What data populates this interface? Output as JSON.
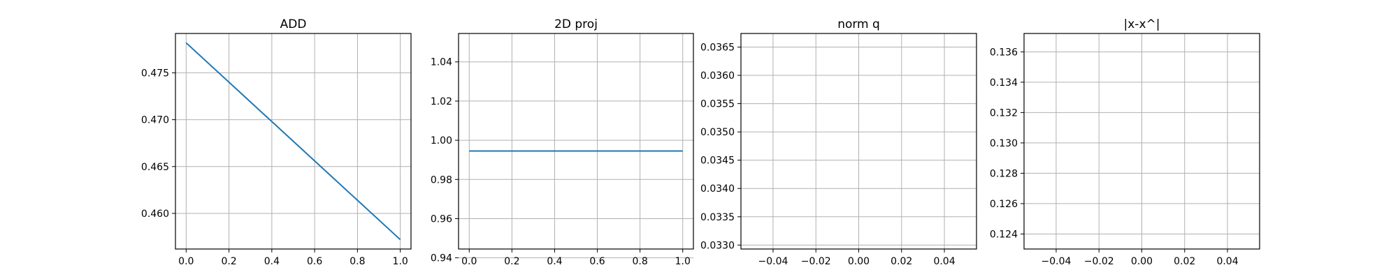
{
  "chart_data": [
    {
      "type": "line",
      "title": "ADD",
      "xlabel": "",
      "ylabel": "",
      "xlim": [
        -0.05,
        1.05
      ],
      "ylim": [
        0.4562,
        0.4792
      ],
      "xticks": [
        0.0,
        0.2,
        0.4,
        0.6,
        0.8,
        1.0
      ],
      "xtick_labels": [
        "0.0",
        "0.2",
        "0.4",
        "0.6",
        "0.8",
        "1.0"
      ],
      "yticks": [
        0.46,
        0.465,
        0.47,
        0.475
      ],
      "ytick_labels": [
        "0.460",
        "0.465",
        "0.470",
        "0.475"
      ],
      "grid": true,
      "series": [
        {
          "x": [
            0.0,
            1.0
          ],
          "y": [
            0.4782,
            0.4572
          ],
          "color": "#1f77b4"
        }
      ]
    },
    {
      "type": "line",
      "title": "2D proj",
      "xlabel": "",
      "ylabel": "",
      "xlim": [
        -0.05,
        1.05
      ],
      "ylim": [
        0.9445,
        1.0545
      ],
      "xticks": [
        0.0,
        0.2,
        0.4,
        0.6,
        0.8,
        1.0
      ],
      "xtick_labels": [
        "0.0",
        "0.2",
        "0.4",
        "0.6",
        "0.8",
        "1.0"
      ],
      "yticks": [
        0.94,
        0.96,
        0.98,
        1.0,
        1.02,
        1.04
      ],
      "ytick_labels": [
        "0.94",
        "0.96",
        "0.98",
        "1.00",
        "1.02",
        "1.04"
      ],
      "grid": true,
      "series": [
        {
          "x": [
            0.0,
            1.0
          ],
          "y": [
            0.9945,
            0.9945
          ],
          "color": "#1f77b4"
        }
      ]
    },
    {
      "type": "line",
      "title": "norm q",
      "xlabel": "",
      "ylabel": "",
      "xlim": [
        -0.055,
        0.055
      ],
      "ylim": [
        0.03293,
        0.03674
      ],
      "xticks": [
        -0.04,
        -0.02,
        0.0,
        0.02,
        0.04
      ],
      "xtick_labels": [
        "−0.04",
        "−0.02",
        "0.00",
        "0.02",
        "0.04"
      ],
      "yticks": [
        0.033,
        0.0335,
        0.034,
        0.0345,
        0.035,
        0.0355,
        0.036,
        0.0365
      ],
      "ytick_labels": [
        "0.0330",
        "0.0335",
        "0.0340",
        "0.0345",
        "0.0350",
        "0.0355",
        "0.0360",
        "0.0365"
      ],
      "grid": true,
      "series": []
    },
    {
      "type": "line",
      "title": "|x-x^|",
      "xlabel": "",
      "ylabel": "",
      "xlim": [
        -0.055,
        0.055
      ],
      "ylim": [
        0.12301,
        0.13721
      ],
      "xticks": [
        -0.04,
        -0.02,
        0.0,
        0.02,
        0.04
      ],
      "xtick_labels": [
        "−0.04",
        "−0.02",
        "0.00",
        "0.02",
        "0.04"
      ],
      "yticks": [
        0.124,
        0.126,
        0.128,
        0.13,
        0.132,
        0.134,
        0.136
      ],
      "ytick_labels": [
        "0.124",
        "0.126",
        "0.128",
        "0.130",
        "0.132",
        "0.134",
        "0.136"
      ],
      "grid": true,
      "series": []
    }
  ]
}
